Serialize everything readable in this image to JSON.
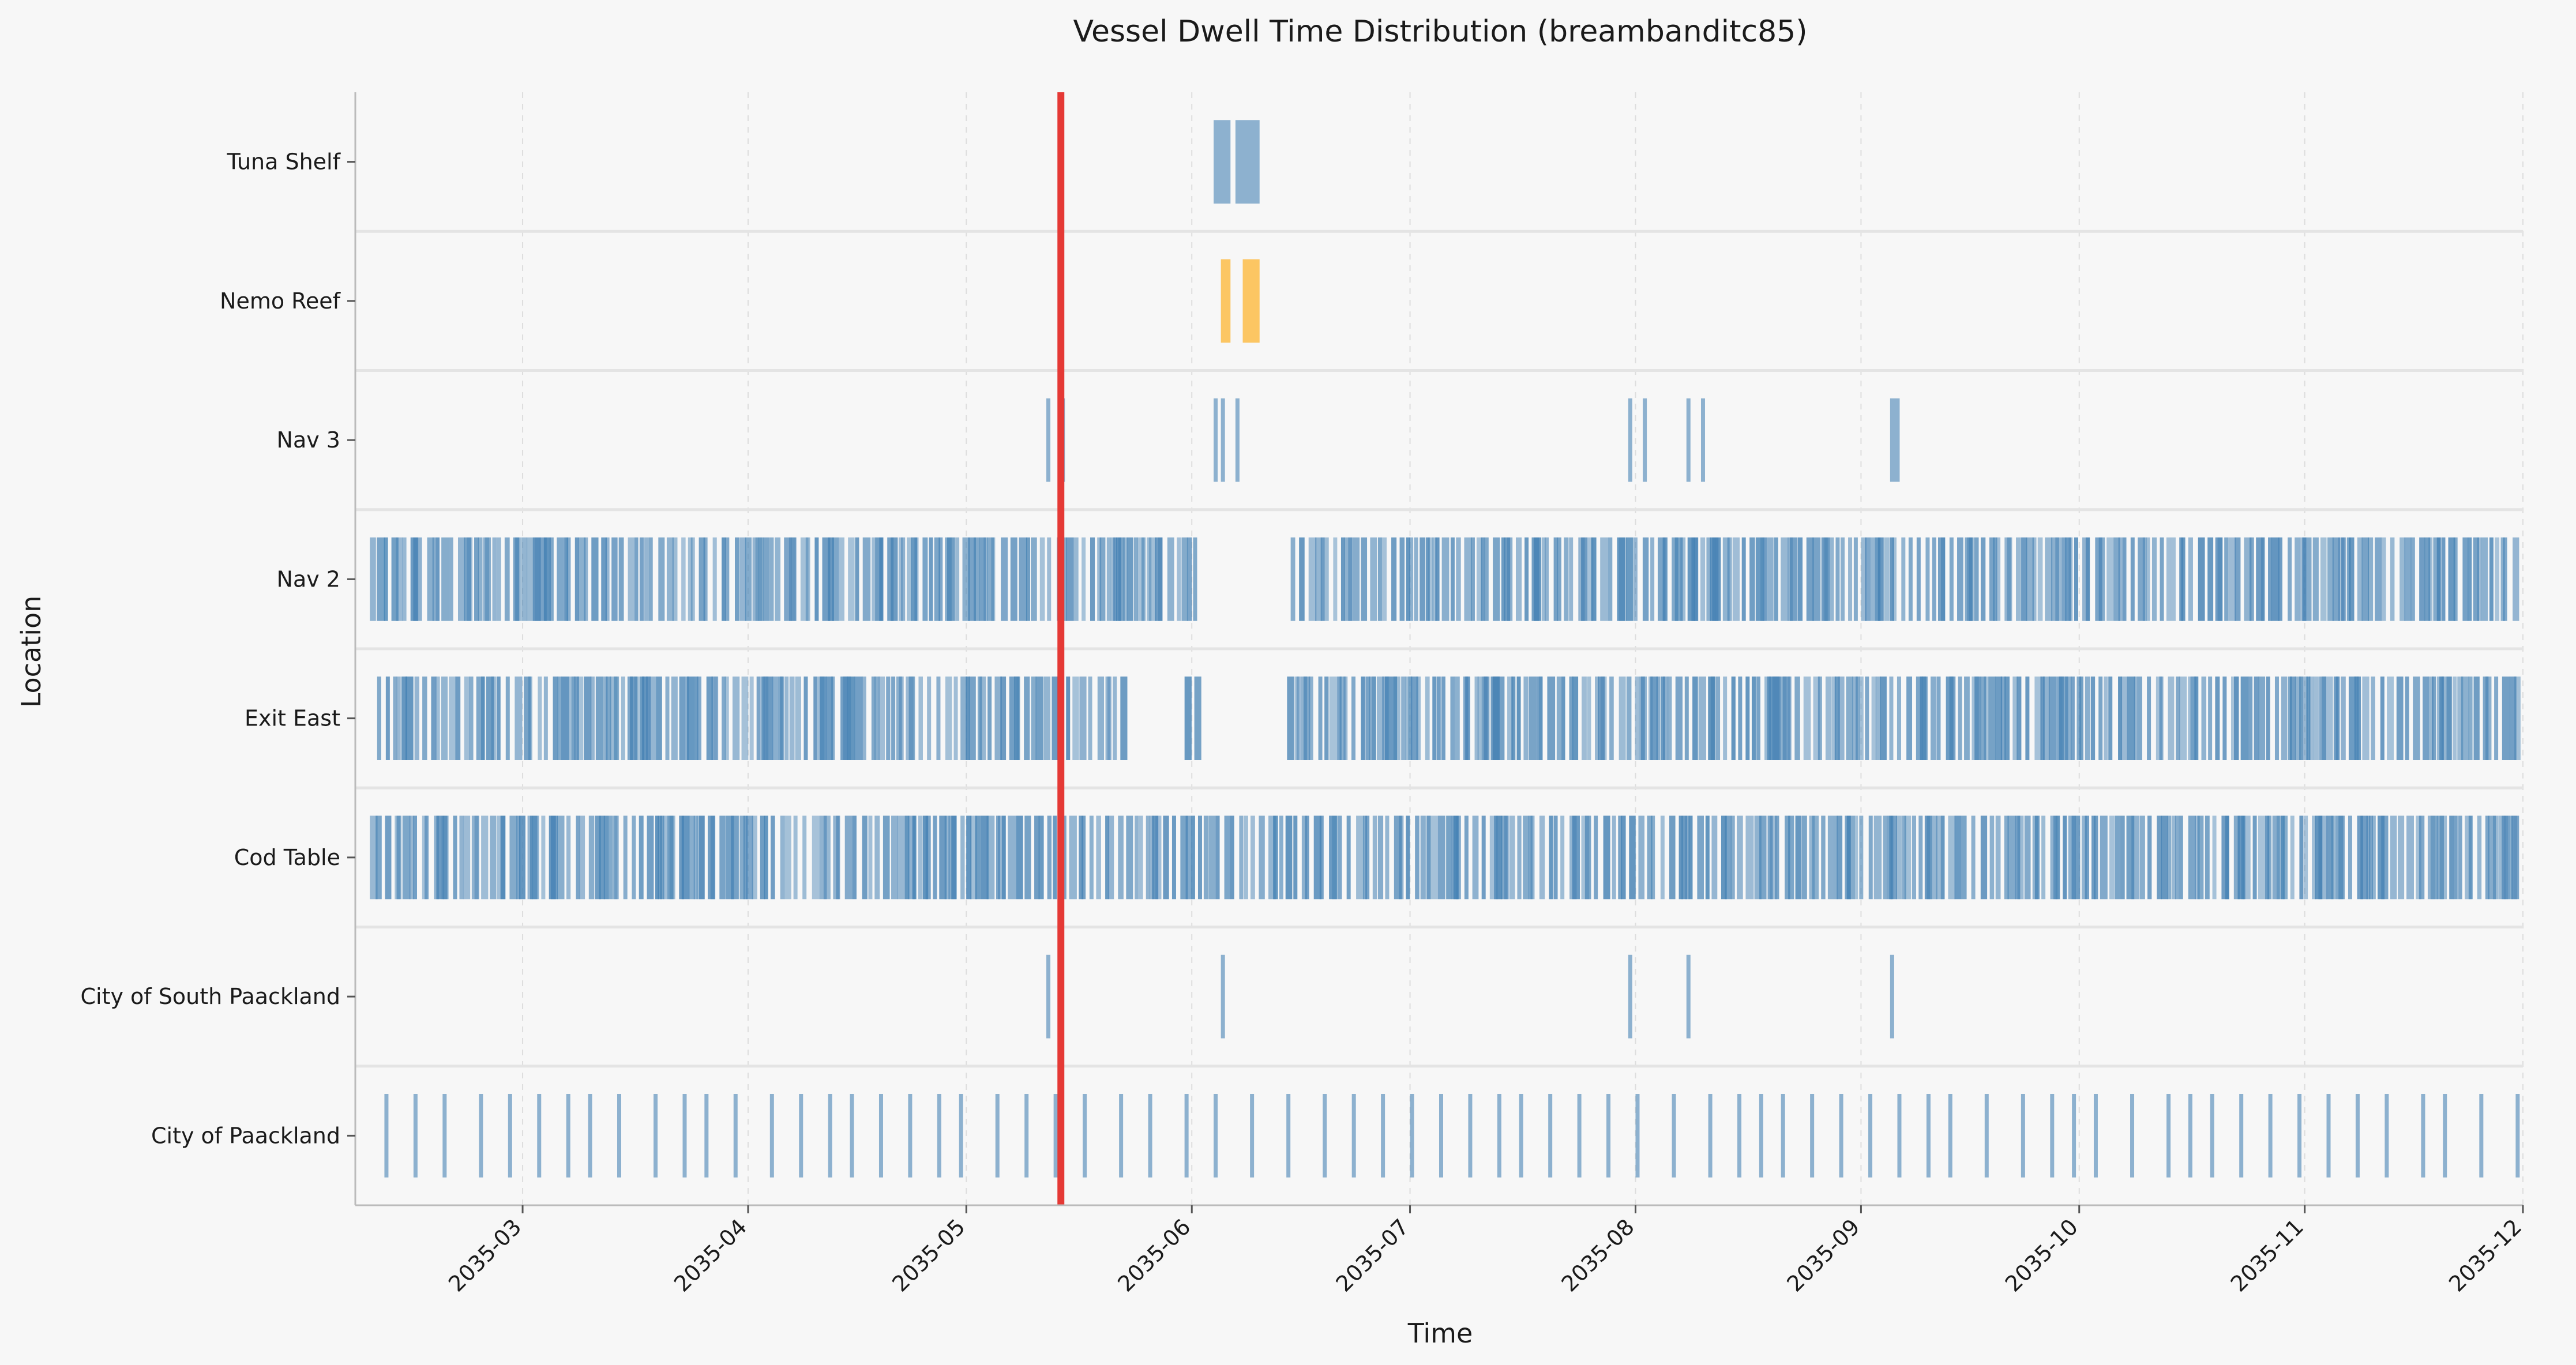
{
  "chart_data": {
    "type": "event-strip",
    "title": "Vessel Dwell Time Distribution (breambanditc85)",
    "xlabel": "Time",
    "ylabel": "Location",
    "grid": true,
    "x_ticks": [
      "2035-03",
      "2035-04",
      "2035-05",
      "2035-06",
      "2035-07",
      "2035-08",
      "2035-09",
      "2035-10",
      "2035-11",
      "2035-12"
    ],
    "xlim": [
      "2035-02-06",
      "2035-12-01"
    ],
    "marker_line": {
      "date": "2035-05-14",
      "color": "#e53935"
    },
    "colors": {
      "default": "#4682b4",
      "highlight": "#ffa500"
    },
    "categories": [
      "Tuna Shelf",
      "Nemo Reef",
      "Nav 3",
      "Nav 2",
      "Exit East",
      "Cod Table",
      "City of South Paackland",
      "City of Paackland"
    ],
    "rows": [
      {
        "name": "Tuna Shelf",
        "color": "#4682b4",
        "intervals": [
          [
            "2035-06-04",
            "2035-06-06"
          ],
          [
            "2035-06-07",
            "2035-06-10"
          ]
        ]
      },
      {
        "name": "Nemo Reef",
        "color": "#ffa500",
        "intervals": [
          [
            "2035-06-05",
            "2035-06-06"
          ],
          [
            "2035-06-08",
            "2035-06-10"
          ]
        ]
      },
      {
        "name": "Nav 3",
        "color": "#4682b4",
        "intervals": [
          [
            "2035-05-12",
            "2035-05-12"
          ],
          [
            "2035-05-14",
            "2035-05-14"
          ],
          [
            "2035-06-04",
            "2035-06-04"
          ],
          [
            "2035-06-05",
            "2035-06-05"
          ],
          [
            "2035-06-07",
            "2035-06-07"
          ],
          [
            "2035-07-31",
            "2035-07-31"
          ],
          [
            "2035-08-02",
            "2035-08-02"
          ],
          [
            "2035-08-08",
            "2035-08-08"
          ],
          [
            "2035-08-10",
            "2035-08-10"
          ],
          [
            "2035-09-05",
            "2035-09-06"
          ]
        ]
      },
      {
        "name": "Nav 2",
        "color": "#4682b4",
        "density": {
          "range": [
            "2035-02-08",
            "2035-11-30"
          ],
          "gaps": [
            [
              "2035-06-02",
              "2035-06-14"
            ]
          ]
        }
      },
      {
        "name": "Exit East",
        "color": "#4682b4",
        "density": {
          "range": [
            "2035-02-09",
            "2035-11-30"
          ],
          "gaps": [
            [
              "2035-05-23",
              "2035-05-31"
            ],
            [
              "2035-06-02",
              "2035-06-13"
            ]
          ]
        }
      },
      {
        "name": "Cod Table",
        "color": "#4682b4",
        "density": {
          "range": [
            "2035-02-08",
            "2035-11-30"
          ],
          "gaps": []
        }
      },
      {
        "name": "City of South Paackland",
        "color": "#4682b4",
        "intervals": [
          [
            "2035-05-12",
            "2035-05-12"
          ],
          [
            "2035-06-05",
            "2035-06-05"
          ],
          [
            "2035-07-31",
            "2035-07-31"
          ],
          [
            "2035-08-08",
            "2035-08-08"
          ],
          [
            "2035-09-05",
            "2035-09-05"
          ]
        ]
      },
      {
        "name": "City of Paackland",
        "color": "#4682b4",
        "regular": {
          "range": [
            "2035-02-10",
            "2035-11-30"
          ],
          "every_days": 4
        }
      }
    ]
  }
}
